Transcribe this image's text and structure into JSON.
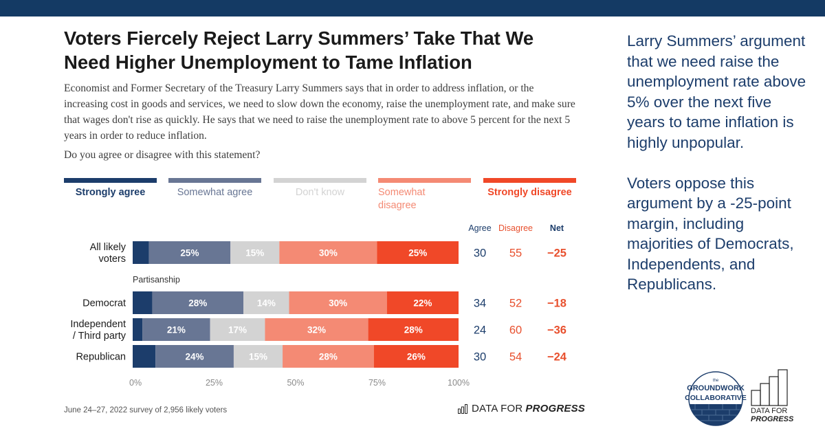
{
  "chart_data": {
    "type": "bar",
    "subtype": "stacked-horizontal-percent",
    "title": "Voters Fiercely Reject Larry Summers’ Take That We Need Higher Unemployment to Tame Inflation",
    "subtitle": "Economist and Former Secretary of the Treasury Larry Summers says that in order to address inflation, or the increasing cost in goods and services, we need to slow down the economy, raise the unemployment rate, and make sure that wages don't rise as quickly. He says that we need to raise the unemployment rate to above 5 percent for the next 5 years in order to reduce inflation.",
    "question": "Do you agree or disagree with this statement?",
    "legend": [
      {
        "label": "Strongly agree",
        "color": "#1c3d6b"
      },
      {
        "label": "Somewhat agree",
        "color": "#687694"
      },
      {
        "label": "Don't know",
        "color": "#d3d3d3"
      },
      {
        "label": "Somewhat disagree",
        "color": "#f48a74"
      },
      {
        "label": "Strongly disagree",
        "color": "#f04828"
      }
    ],
    "column_headers": {
      "agree": "Agree",
      "disagree": "Disagree",
      "net": "Net"
    },
    "group_label": "Partisanship",
    "rows": [
      {
        "label": "All likely voters",
        "values": [
          5,
          25,
          15,
          30,
          25
        ],
        "labels": [
          "",
          "25%",
          "15%",
          "30%",
          "25%"
        ],
        "agree": "30",
        "disagree": "55",
        "net": "−25"
      },
      {
        "label": "Democrat",
        "values": [
          6,
          28,
          14,
          30,
          22
        ],
        "labels": [
          "",
          "28%",
          "14%",
          "30%",
          "22%"
        ],
        "agree": "34",
        "disagree": "52",
        "net": "−18"
      },
      {
        "label": "Independent / Third party",
        "values": [
          3,
          21,
          17,
          32,
          28
        ],
        "labels": [
          "",
          "21%",
          "17%",
          "32%",
          "28%"
        ],
        "agree": "24",
        "disagree": "60",
        "net": "−36"
      },
      {
        "label": "Republican",
        "values": [
          7,
          24,
          15,
          28,
          26
        ],
        "labels": [
          "",
          "24%",
          "15%",
          "28%",
          "26%"
        ],
        "agree": "30",
        "disagree": "54",
        "net": "−24"
      }
    ],
    "xticks": [
      "0%",
      "25%",
      "50%",
      "75%",
      "100%"
    ],
    "xlim": [
      0,
      100
    ]
  },
  "source": "June 24–27, 2022 survey of 2,956 likely voters",
  "brand": {
    "normal": "DATA FOR",
    "italic": "PROGRESS"
  },
  "side_text": [
    "Larry Summers’ argument that we need raise the unemployment rate above 5% over the next five years to tame inflation is highly unpopular.",
    "Voters oppose this argument by a -25-point margin, including majorities of Democrats, Independents, and Republicans."
  ],
  "groundwork_logo": {
    "line1": "the",
    "line2": "GROUNDWORK",
    "line3": "COLLABORATIVE"
  },
  "colors": {
    "top_bar": "#143a64",
    "agree_text": "#1c3d6b",
    "disagree_text": "#e8502e",
    "side_text": "#1c3d6b"
  }
}
